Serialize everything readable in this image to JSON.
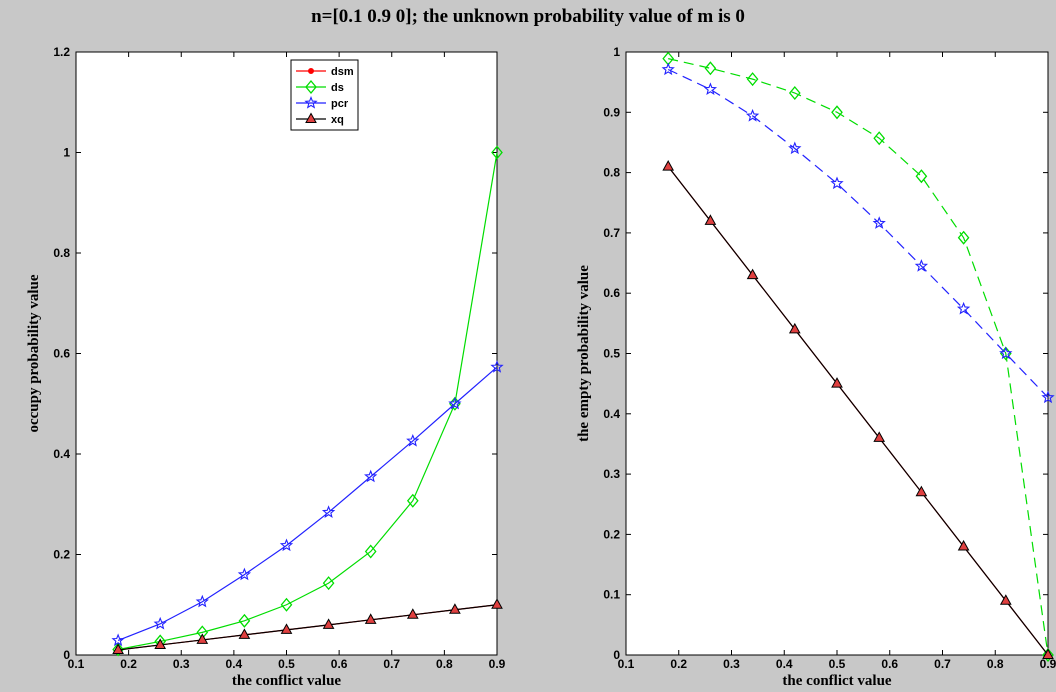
{
  "title": "n=[0.1 0.9 0]; the unknown probability value of m is 0",
  "chart_data": [
    {
      "type": "line",
      "xlabel": "the conflict value",
      "ylabel": "occupy probability value",
      "xlim": [
        0.1,
        0.9
      ],
      "ylim": [
        0,
        1.2
      ],
      "xticks": [
        "0.1",
        "0.2",
        "0.3",
        "0.4",
        "0.5",
        "0.6",
        "0.7",
        "0.8",
        "0.9"
      ],
      "yticks": [
        "0",
        "0.2",
        "0.4",
        "0.6",
        "0.8",
        "1",
        "1.2"
      ],
      "legend_position": "top-center",
      "x": [
        0.18,
        0.26,
        0.34,
        0.42,
        0.5,
        0.58,
        0.66,
        0.74,
        0.82,
        0.9
      ],
      "series": [
        {
          "name": "dsm",
          "color": "#ff0000",
          "marker": "dot",
          "style": "solid",
          "values": [
            0.01,
            0.02,
            0.03,
            0.04,
            0.05,
            0.06,
            0.07,
            0.08,
            0.09,
            0.1
          ]
        },
        {
          "name": "ds",
          "color": "#00dd00",
          "marker": "diamond",
          "style": "solid",
          "values": [
            0.011,
            0.027,
            0.045,
            0.068,
            0.1,
            0.143,
            0.206,
            0.307,
            0.5,
            1.0
          ]
        },
        {
          "name": "pcr",
          "color": "#2222ff",
          "marker": "star",
          "style": "solid",
          "values": [
            0.029,
            0.062,
            0.106,
            0.16,
            0.218,
            0.284,
            0.355,
            0.426,
            0.5,
            0.573
          ]
        },
        {
          "name": "xq",
          "color": "#000000",
          "marker": "triangle",
          "style": "solid",
          "values": [
            0.01,
            0.02,
            0.03,
            0.04,
            0.05,
            0.06,
            0.07,
            0.08,
            0.09,
            0.1
          ]
        }
      ]
    },
    {
      "type": "line",
      "xlabel": "the conflict value",
      "ylabel": "the empty probability value",
      "xlim": [
        0.1,
        0.9
      ],
      "ylim": [
        0,
        1
      ],
      "xticks": [
        "0.1",
        "0.2",
        "0.3",
        "0.4",
        "0.5",
        "0.6",
        "0.7",
        "0.8",
        "0.9"
      ],
      "yticks": [
        "0",
        "0.1",
        "0.2",
        "0.3",
        "0.4",
        "0.5",
        "0.6",
        "0.7",
        "0.8",
        "0.9",
        "1"
      ],
      "x": [
        0.18,
        0.26,
        0.34,
        0.42,
        0.5,
        0.58,
        0.66,
        0.74,
        0.82,
        0.9
      ],
      "series": [
        {
          "color": "#ff0000",
          "marker": "dot",
          "style": "solid",
          "values": [
            0.81,
            0.72,
            0.63,
            0.54,
            0.45,
            0.36,
            0.27,
            0.18,
            0.09,
            0.0
          ]
        },
        {
          "color": "#00dd00",
          "marker": "diamond",
          "style": "dashed",
          "values": [
            0.989,
            0.973,
            0.955,
            0.932,
            0.9,
            0.857,
            0.794,
            0.692,
            0.5,
            0.0
          ]
        },
        {
          "color": "#2222ff",
          "marker": "star",
          "style": "dashed",
          "values": [
            0.971,
            0.938,
            0.894,
            0.84,
            0.782,
            0.716,
            0.645,
            0.574,
            0.5,
            0.427
          ]
        },
        {
          "color": "#000000",
          "marker": "triangle",
          "style": "solid",
          "values": [
            0.81,
            0.72,
            0.63,
            0.54,
            0.45,
            0.36,
            0.27,
            0.18,
            0.09,
            0.0
          ]
        }
      ]
    }
  ]
}
